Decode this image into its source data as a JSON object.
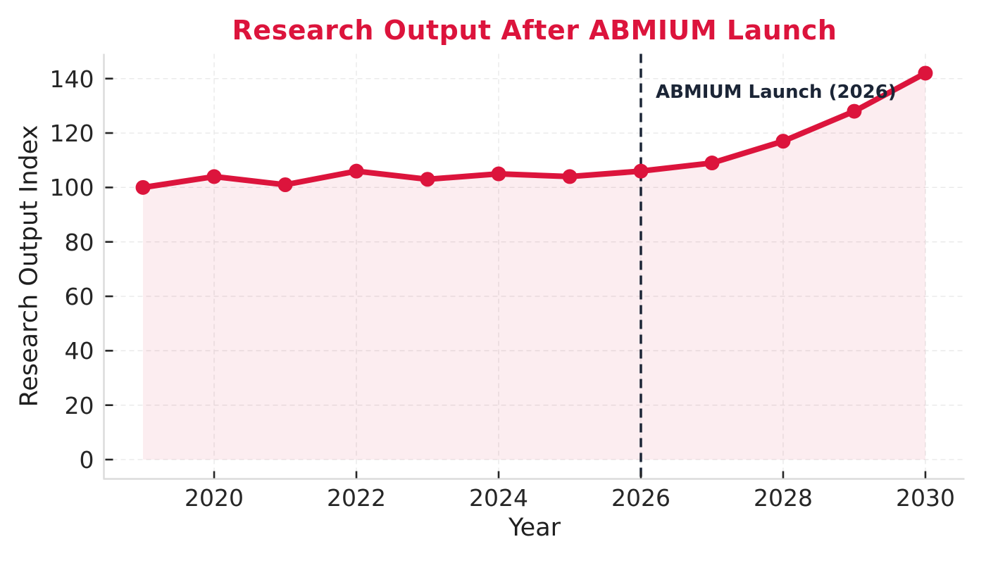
{
  "chart_data": {
    "type": "line",
    "title": "Research Output After ABMIUM Launch",
    "xlabel": "Year",
    "ylabel": "Research Output Index",
    "x": [
      2019,
      2020,
      2021,
      2022,
      2023,
      2024,
      2025,
      2026,
      2027,
      2028,
      2029,
      2030
    ],
    "values": [
      100,
      104,
      101,
      106,
      103,
      105,
      104,
      106,
      109,
      117,
      128,
      142
    ],
    "xticks": [
      2020,
      2022,
      2024,
      2026,
      2028,
      2030
    ],
    "yticks": [
      0,
      20,
      40,
      60,
      80,
      100,
      120,
      140
    ],
    "xlim": [
      2018.45,
      2030.55
    ],
    "ylim": [
      -7.1,
      149.1
    ],
    "grid": "dashed-light",
    "legend": "none",
    "annotation": {
      "label": "ABMIUM Launch (2026)",
      "x": 2026,
      "line_style": "dashed"
    },
    "colors": {
      "line": "#DC143C",
      "marker": "#DC143C",
      "fill": "#DC143C",
      "fill_opacity": 0.08,
      "title": "#DC143C",
      "annotation": "#1B2536",
      "grid": "#e9e9e9",
      "spine": "#dcdcdc",
      "tick": "#262626",
      "tick_label": "#262626"
    }
  }
}
